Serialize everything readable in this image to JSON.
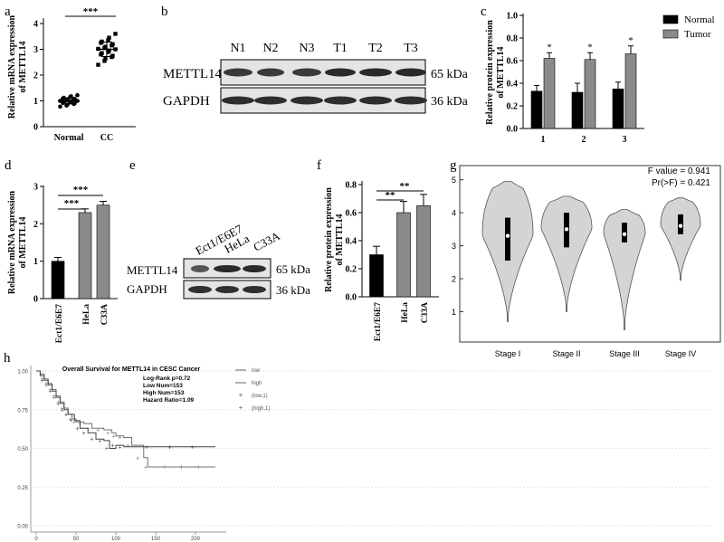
{
  "panels": {
    "a": {
      "letter": "a",
      "ylabel": "Relative mRNA expression",
      "ylabel2": "of METTL14",
      "sig": "***"
    },
    "b": {
      "letter": "b",
      "lanes": [
        "N1",
        "N2",
        "N3",
        "T1",
        "T2",
        "T3"
      ],
      "rows": [
        "METTL14",
        "GAPDH"
      ],
      "sizes": [
        "65 kDa",
        "36 kDa"
      ]
    },
    "c": {
      "letter": "c",
      "ylabel": "Relative protein expression",
      "ylabel2": "of METTL14",
      "sig": [
        "*",
        "*",
        "*"
      ]
    },
    "d": {
      "letter": "d",
      "ylabel": "Relative mRNA expression",
      "ylabel2": "of METTL14",
      "sig": [
        "***",
        "***"
      ]
    },
    "e": {
      "letter": "e",
      "lanes": [
        "Ect1/E6E7",
        "HeLa",
        "C33A"
      ],
      "rows": [
        "METTL14",
        "GAPDH"
      ],
      "sizes": [
        "65 kDa",
        "36 kDa"
      ]
    },
    "f": {
      "letter": "f",
      "ylabel": "Relative protein expression",
      "ylabel2": "of METTL14",
      "sig": [
        "**",
        "**"
      ]
    },
    "g": {
      "letter": "g",
      "stats": [
        "F value = 0.941",
        "Pr(>F) = 0.421"
      ]
    },
    "h": {
      "letter": "h",
      "title": "Overall Survival for METTL14 in CESC Cancer",
      "stats": [
        "Log-Rank p=0.72",
        "Low Num=153",
        "High Num=153",
        "Hazard Ratio=1.09"
      ],
      "legend": [
        "low",
        "high",
        "(low,1)",
        "(high,1)"
      ]
    }
  },
  "chart_data": [
    {
      "id": "a",
      "type": "scatter",
      "categories": [
        "Normal",
        "CC"
      ],
      "ylim": [
        0,
        4
      ],
      "yticks": [
        0,
        1,
        2,
        3,
        4
      ],
      "series": [
        {
          "name": "Normal",
          "mean": 1.0,
          "sd": 0.12,
          "values": [
            0.78,
            0.82,
            0.85,
            0.88,
            0.9,
            0.92,
            0.94,
            0.96,
            0.98,
            1.0,
            1.0,
            1.02,
            1.04,
            1.06,
            1.08,
            1.1,
            1.12,
            1.15,
            1.18,
            1.22
          ]
        },
        {
          "name": "CC",
          "mean": 3.0,
          "sd": 0.28,
          "values": [
            2.4,
            2.55,
            2.65,
            2.7,
            2.75,
            2.8,
            2.85,
            2.9,
            2.95,
            3.0,
            3.02,
            3.05,
            3.1,
            3.15,
            3.2,
            3.25,
            3.3,
            3.35,
            3.45,
            3.6
          ]
        }
      ]
    },
    {
      "id": "c",
      "type": "bar",
      "categories": [
        "1",
        "2",
        "3"
      ],
      "ylim": [
        0,
        1.0
      ],
      "yticks": [
        0,
        0.2,
        0.4,
        0.6,
        0.8,
        1.0
      ],
      "series": [
        {
          "name": "Normal",
          "color": "#000000",
          "values": [
            0.33,
            0.32,
            0.35
          ],
          "errors": [
            0.05,
            0.08,
            0.06
          ]
        },
        {
          "name": "Tumor",
          "color": "#8a8a8a",
          "values": [
            0.62,
            0.61,
            0.66
          ],
          "errors": [
            0.05,
            0.06,
            0.07
          ]
        }
      ]
    },
    {
      "id": "d",
      "type": "bar",
      "categories": [
        "Ect1/E6E7",
        "HeLa",
        "C33A"
      ],
      "ylim": [
        0,
        3
      ],
      "yticks": [
        0,
        1,
        2,
        3
      ],
      "colors": [
        "#000000",
        "#8a8a8a",
        "#8a8a8a"
      ],
      "values": [
        1.0,
        2.3,
        2.5
      ],
      "errors": [
        0.1,
        0.1,
        0.1
      ]
    },
    {
      "id": "f",
      "type": "bar",
      "categories": [
        "Ect1/E6E7",
        "HeLa",
        "C33A"
      ],
      "ylim": [
        0,
        0.8
      ],
      "yticks": [
        0,
        0.2,
        0.4,
        0.6,
        0.8
      ],
      "colors": [
        "#000000",
        "#8a8a8a",
        "#8a8a8a"
      ],
      "values": [
        0.3,
        0.6,
        0.65
      ],
      "errors": [
        0.06,
        0.08,
        0.08
      ]
    },
    {
      "id": "g",
      "type": "violin",
      "categories": [
        "Stage I",
        "Stage II",
        "Stage III",
        "Stage IV"
      ],
      "ylim": [
        0.3,
        5.1
      ],
      "yticks": [
        1,
        2,
        3,
        4,
        5
      ],
      "series": [
        {
          "name": "Stage I",
          "min": 0.7,
          "max": 4.95,
          "median": 3.3,
          "q1": 2.55,
          "q3": 3.85
        },
        {
          "name": "Stage II",
          "min": 1.0,
          "max": 4.5,
          "median": 3.5,
          "q1": 2.95,
          "q3": 4.0
        },
        {
          "name": "Stage III",
          "min": 0.45,
          "max": 4.1,
          "median": 3.35,
          "q1": 3.1,
          "q3": 3.7
        },
        {
          "name": "Stage IV",
          "min": 1.95,
          "max": 4.45,
          "median": 3.6,
          "q1": 3.35,
          "q3": 3.95
        }
      ]
    },
    {
      "id": "h",
      "type": "line",
      "xlim": [
        0,
        225
      ],
      "ylim": [
        0,
        1
      ],
      "xticks": [
        0,
        50,
        100,
        150,
        200
      ],
      "yticks": [
        0,
        0.25,
        0.5,
        0.75,
        1
      ],
      "series": [
        {
          "name": "low",
          "points": [
            [
              0,
              1
            ],
            [
              5,
              0.98
            ],
            [
              10,
              0.95
            ],
            [
              15,
              0.92
            ],
            [
              20,
              0.88
            ],
            [
              25,
              0.84
            ],
            [
              30,
              0.8
            ],
            [
              35,
              0.76
            ],
            [
              40,
              0.72
            ],
            [
              45,
              0.69
            ],
            [
              50,
              0.67
            ],
            [
              60,
              0.66
            ],
            [
              70,
              0.63
            ],
            [
              85,
              0.62
            ],
            [
              95,
              0.6
            ],
            [
              100,
              0.58
            ],
            [
              110,
              0.57
            ],
            [
              120,
              0.52
            ],
            [
              135,
              0.44
            ],
            [
              140,
              0.38
            ],
            [
              225,
              0.38
            ]
          ]
        },
        {
          "name": "high",
          "points": [
            [
              0,
              1
            ],
            [
              5,
              0.97
            ],
            [
              10,
              0.94
            ],
            [
              15,
              0.91
            ],
            [
              20,
              0.87
            ],
            [
              25,
              0.83
            ],
            [
              30,
              0.79
            ],
            [
              35,
              0.75
            ],
            [
              40,
              0.72
            ],
            [
              48,
              0.68
            ],
            [
              55,
              0.63
            ],
            [
              65,
              0.6
            ],
            [
              75,
              0.56
            ],
            [
              85,
              0.55
            ],
            [
              92,
              0.5
            ],
            [
              100,
              0.52
            ],
            [
              110,
              0.51
            ],
            [
              225,
              0.51
            ]
          ]
        }
      ]
    }
  ]
}
